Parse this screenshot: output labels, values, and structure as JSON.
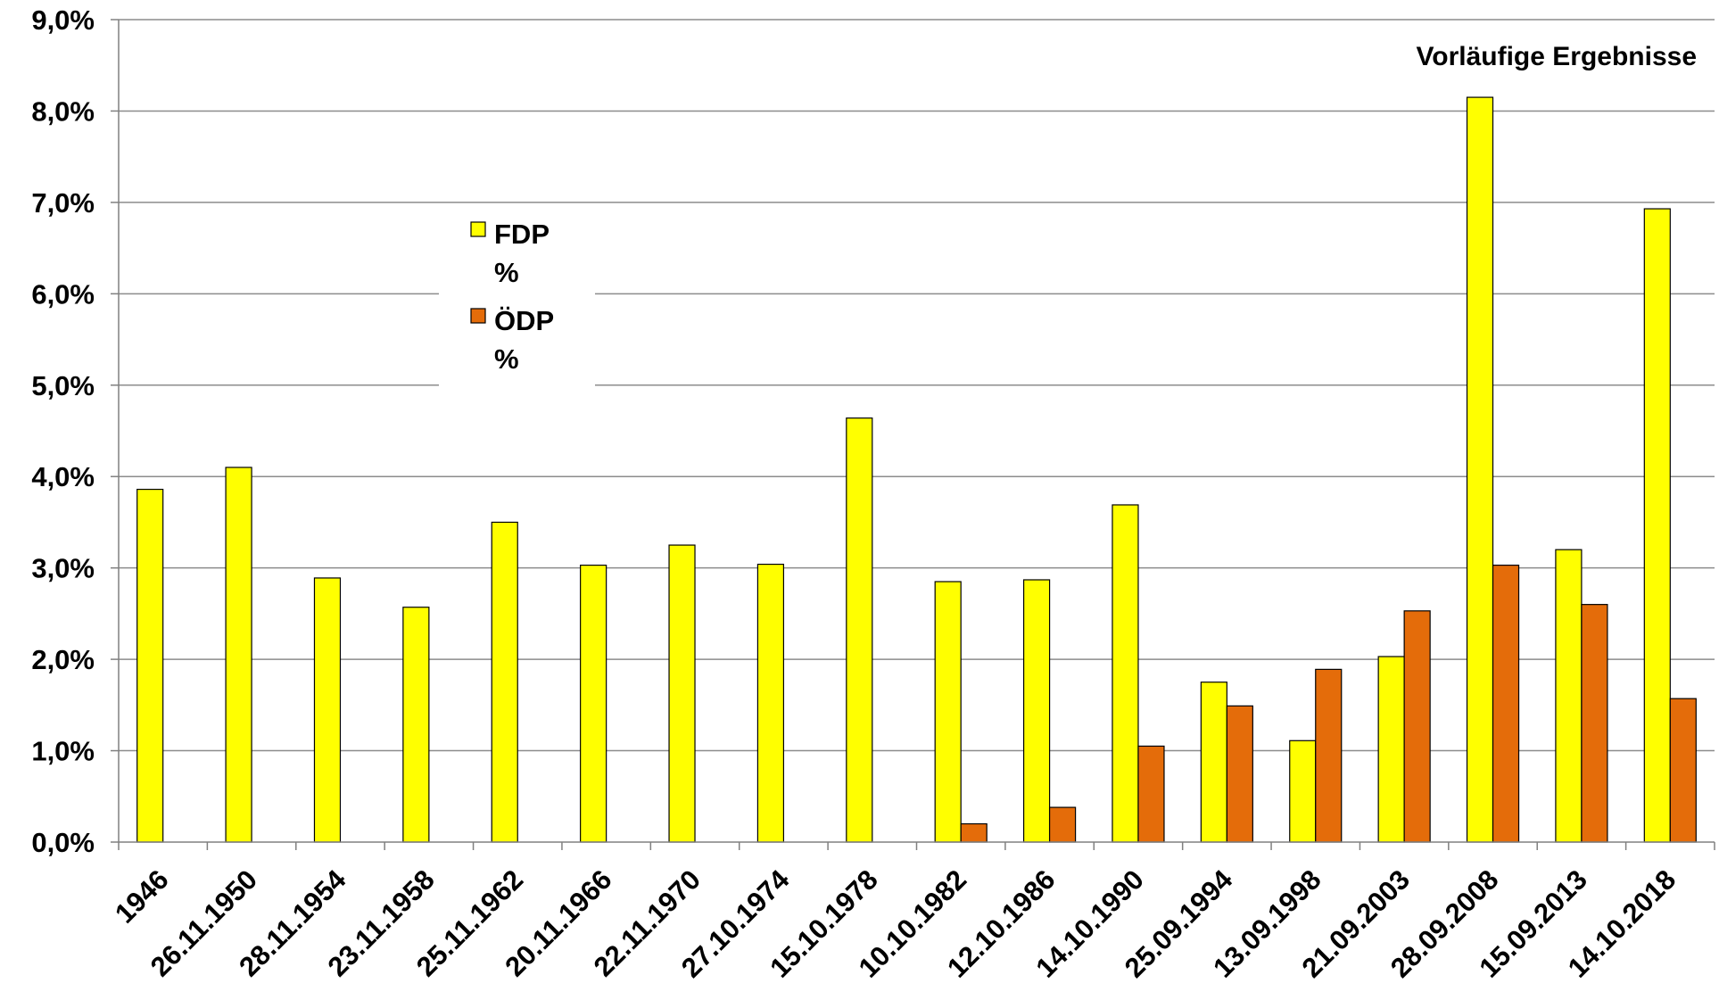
{
  "chart_data": {
    "type": "bar",
    "annotation": "Vorläufige Ergebnisse",
    "categories": [
      "1946",
      "26.11.1950",
      "28.11.1954",
      "23.11.1958",
      "25.11.1962",
      "20.11.1966",
      "22.11.1970",
      "27.10.1974",
      "15.10.1978",
      "10.10.1982",
      "12.10.1986",
      "14.10.1990",
      "25.09.1994",
      "13.09.1998",
      "21.09.2003",
      "28.09.2008",
      "15.09.2013",
      "14.10.2018"
    ],
    "series": [
      {
        "name": "FDP %",
        "legend_lines": [
          "FDP",
          "%"
        ],
        "color": "#FFFF00",
        "values": [
          3.86,
          4.1,
          2.89,
          2.57,
          3.5,
          3.03,
          3.25,
          3.04,
          4.64,
          2.85,
          2.87,
          3.69,
          1.75,
          1.11,
          2.03,
          8.15,
          3.2,
          6.93
        ]
      },
      {
        "name": "ÖDP %",
        "legend_lines": [
          "ÖDP",
          "%"
        ],
        "color": "#E46C0A",
        "values": [
          null,
          null,
          null,
          null,
          null,
          null,
          null,
          null,
          null,
          0.2,
          0.38,
          1.05,
          1.49,
          1.89,
          2.53,
          3.03,
          2.6,
          1.57
        ]
      }
    ],
    "yticks": [
      "0,0%",
      "1,0%",
      "2,0%",
      "3,0%",
      "4,0%",
      "5,0%",
      "6,0%",
      "7,0%",
      "8,0%",
      "9,0%"
    ],
    "ylim": [
      0,
      9
    ],
    "grid": true,
    "legend_position": "upper-left"
  }
}
